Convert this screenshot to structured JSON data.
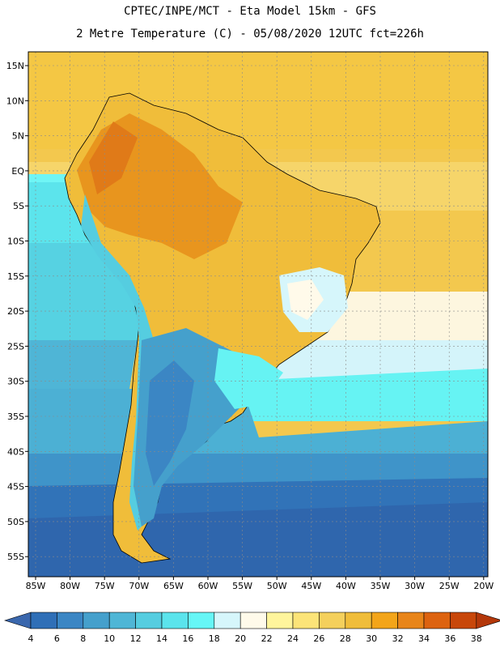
{
  "header": {
    "line1": "CPTEC/INPE/MCT -  Eta Model 15km - GFS",
    "line2": "2 Metre Temperature (C) - 05/08/2020 12UTC fct=226h"
  },
  "map": {
    "lat_labels": [
      "15N",
      "10N",
      "5N",
      "EQ",
      "5S",
      "10S",
      "15S",
      "20S",
      "25S",
      "30S",
      "35S",
      "40S",
      "45S",
      "50S",
      "55S"
    ],
    "lon_labels": [
      "85W",
      "80W",
      "75W",
      "70W",
      "65W",
      "60W",
      "55W",
      "50W",
      "45W",
      "40W",
      "35W",
      "30W",
      "25W",
      "20W"
    ]
  },
  "colorbar": {
    "ticks": [
      "4",
      "6",
      "8",
      "10",
      "12",
      "14",
      "16",
      "18",
      "20",
      "22",
      "24",
      "26",
      "28",
      "30",
      "32",
      "34",
      "36",
      "38"
    ],
    "colors": [
      "#3a67ad",
      "#2f6fb7",
      "#3b86c4",
      "#45a0cc",
      "#4fb6d6",
      "#55cde0",
      "#5be4ec",
      "#66f6f6",
      "#d6f6fb",
      "#fffaea",
      "#fff59c",
      "#fce478",
      "#f4d05c",
      "#f0bd3a",
      "#f3a51a",
      "#e8851a",
      "#dd6310",
      "#c8470a",
      "#b4380a"
    ]
  }
}
